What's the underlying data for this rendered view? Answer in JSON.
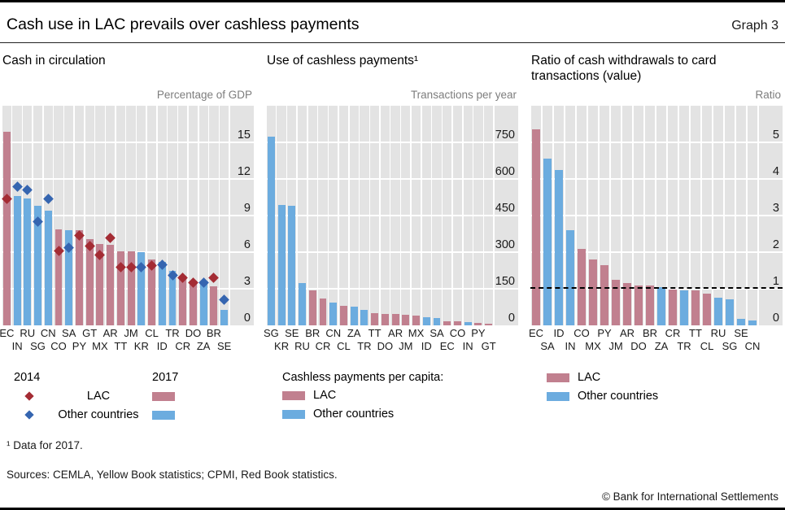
{
  "header": {
    "title": "Cash use in LAC prevails over cashless payments",
    "graph_label": "Graph 3"
  },
  "legend": {
    "year_diamond": "2014",
    "year_bar": "2017",
    "lac": "LAC",
    "other": "Other countries",
    "p2_header": "Cashless payments per capita:"
  },
  "footnote": "¹ Data for 2017.",
  "sources": "Sources: CEMLA, Yellow Book statistics; CPMI, Red Book statistics.",
  "copyright": "© Bank for International Settlements",
  "colors": {
    "lac_bar": "#c1808f",
    "other_bar": "#6cacdf",
    "lac_diamond": "#a42c34",
    "other_diamond": "#3565b0",
    "plot_bg": "#e3e3e3",
    "refline": "#000000"
  },
  "chart_data": [
    {
      "type": "bar",
      "title": "Cash in circulation",
      "axis_title": "Percentage of GDP",
      "ylim": [
        0,
        18
      ],
      "yticks": [
        0,
        3,
        6,
        9,
        12,
        15
      ],
      "grid": true,
      "legend_position": "bottom",
      "categories": [
        "EC",
        "IN",
        "RU",
        "SG",
        "CN",
        "CO",
        "SA",
        "PY",
        "GT",
        "MX",
        "AR",
        "TT",
        "JM",
        "KR",
        "CL",
        "ID",
        "TR",
        "CR",
        "DO",
        "ZA",
        "BR",
        "SE"
      ],
      "lac": [
        1,
        0,
        0,
        0,
        0,
        1,
        0,
        1,
        1,
        1,
        1,
        1,
        1,
        0,
        1,
        0,
        0,
        1,
        1,
        0,
        1,
        0
      ],
      "series": [
        {
          "name": "2017",
          "style": "bar",
          "values": [
            15.9,
            10.6,
            10.4,
            9.8,
            9.4,
            7.9,
            7.8,
            7.8,
            7.1,
            6.7,
            6.6,
            6.1,
            6.1,
            6.0,
            5.4,
            5.2,
            4.5,
            4.1,
            3.7,
            3.5,
            3.2,
            1.3
          ]
        },
        {
          "name": "2014",
          "style": "diamond",
          "values": [
            10.4,
            11.4,
            11.1,
            8.5,
            10.4,
            6.1,
            6.4,
            7.4,
            6.5,
            5.8,
            7.2,
            4.8,
            4.8,
            4.8,
            4.9,
            5.0,
            4.1,
            3.9,
            3.5,
            3.5,
            3.9,
            2.1
          ]
        }
      ]
    },
    {
      "type": "bar",
      "title": "Use of cashless payments¹",
      "axis_title": "Transactions per year",
      "ylim": [
        0,
        900
      ],
      "yticks": [
        0,
        150,
        300,
        450,
        600,
        750
      ],
      "grid": true,
      "legend_position": "bottom",
      "categories": [
        "SG",
        "KR",
        "SE",
        "RU",
        "BR",
        "CR",
        "CN",
        "CL",
        "ZA",
        "TR",
        "TT",
        "DO",
        "AR",
        "JM",
        "MX",
        "ID",
        "SA",
        "EC",
        "CO",
        "IN",
        "PY",
        "GT"
      ],
      "lac": [
        0,
        0,
        0,
        0,
        1,
        1,
        0,
        1,
        0,
        0,
        1,
        1,
        1,
        1,
        1,
        0,
        0,
        1,
        1,
        0,
        1,
        1
      ],
      "series": [
        {
          "name": "Cashless payments per capita",
          "style": "bar",
          "values": [
            775,
            495,
            490,
            175,
            145,
            110,
            94,
            81,
            78,
            64,
            50,
            47,
            47,
            43,
            40,
            33,
            30,
            17,
            17,
            13,
            10,
            7
          ]
        }
      ]
    },
    {
      "type": "bar",
      "title": "Ratio of cash withdrawals to card transactions (value)",
      "axis_title": "Ratio",
      "ylim": [
        0,
        6
      ],
      "yticks": [
        0,
        1,
        2,
        3,
        4,
        5
      ],
      "grid": true,
      "refline": 1,
      "legend_position": "bottom",
      "categories": [
        "EC",
        "SA",
        "ID",
        "IN",
        "CO",
        "MX",
        "PY",
        "JM",
        "AR",
        "DO",
        "BR",
        "ZA",
        "CR",
        "TR",
        "TT",
        "CL",
        "RU",
        "SG",
        "SE",
        "CN"
      ],
      "lac": [
        1,
        0,
        0,
        0,
        1,
        1,
        1,
        1,
        1,
        1,
        1,
        0,
        1,
        0,
        1,
        1,
        0,
        0,
        0,
        0
      ],
      "series": [
        {
          "name": "Ratio",
          "style": "bar",
          "values": [
            5.35,
            4.55,
            4.25,
            2.6,
            2.1,
            1.8,
            1.65,
            1.25,
            1.15,
            1.1,
            1.08,
            1.05,
            0.97,
            0.96,
            0.95,
            0.87,
            0.75,
            0.72,
            0.17,
            0.13
          ]
        }
      ]
    }
  ]
}
